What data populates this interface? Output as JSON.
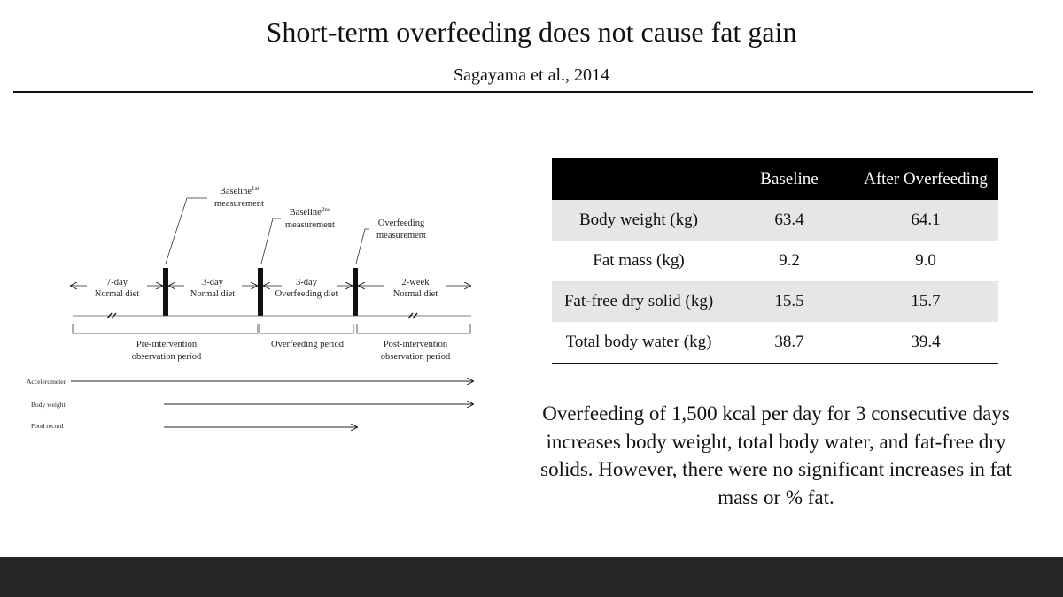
{
  "slide": {
    "title": "Short-term overfeeding does not cause fat gain",
    "subtitle": "Sagayama et al., 2014",
    "summary": "Overfeeding of 1,500 kcal per day for 3 consecutive days increases body weight, total body water, and fat-free dry solids. However, there were no significant increases in fat mass or % fat."
  },
  "diagram": {
    "baseline1": {
      "line1": "Baseline",
      "sup": "1st",
      "line2": "measurement"
    },
    "baseline2": {
      "line1": "Baseline",
      "sup": "2nd",
      "line2": "measurement"
    },
    "overfeeding_measurement": {
      "line1": "Overfeeding",
      "line2": "measurement"
    },
    "phases": [
      {
        "line1": "7-day",
        "line2": "Normal diet"
      },
      {
        "line1": "3-day",
        "line2": "Normal diet"
      },
      {
        "line1": "3-day",
        "line2": "Overfeeding diet"
      },
      {
        "line1": "2-week",
        "line2": "Normal diet"
      }
    ],
    "periods": [
      {
        "line1": "Pre-intervention",
        "line2": "observation period"
      },
      {
        "line1": "Overfeeding period",
        "line2": ""
      },
      {
        "line1": "Post-intervention",
        "line2": "observation period"
      }
    ],
    "tracks": [
      "Accelerometer",
      "Body weight",
      "Food record"
    ]
  },
  "table": {
    "headers": [
      "",
      "Baseline",
      "After Overfeeding"
    ],
    "rows": [
      [
        "Body weight (kg)",
        "63.4",
        "64.1"
      ],
      [
        "Fat mass (kg)",
        "9.2",
        "9.0"
      ],
      [
        "Fat-free dry solid (kg)",
        "15.5",
        "15.7"
      ],
      [
        "Total body water (kg)",
        "38.7",
        "39.4"
      ]
    ]
  },
  "colors": {
    "background": "#ffffff",
    "table_header": "#000000",
    "table_shade": "#e6e6e6",
    "footer": "#262626"
  }
}
